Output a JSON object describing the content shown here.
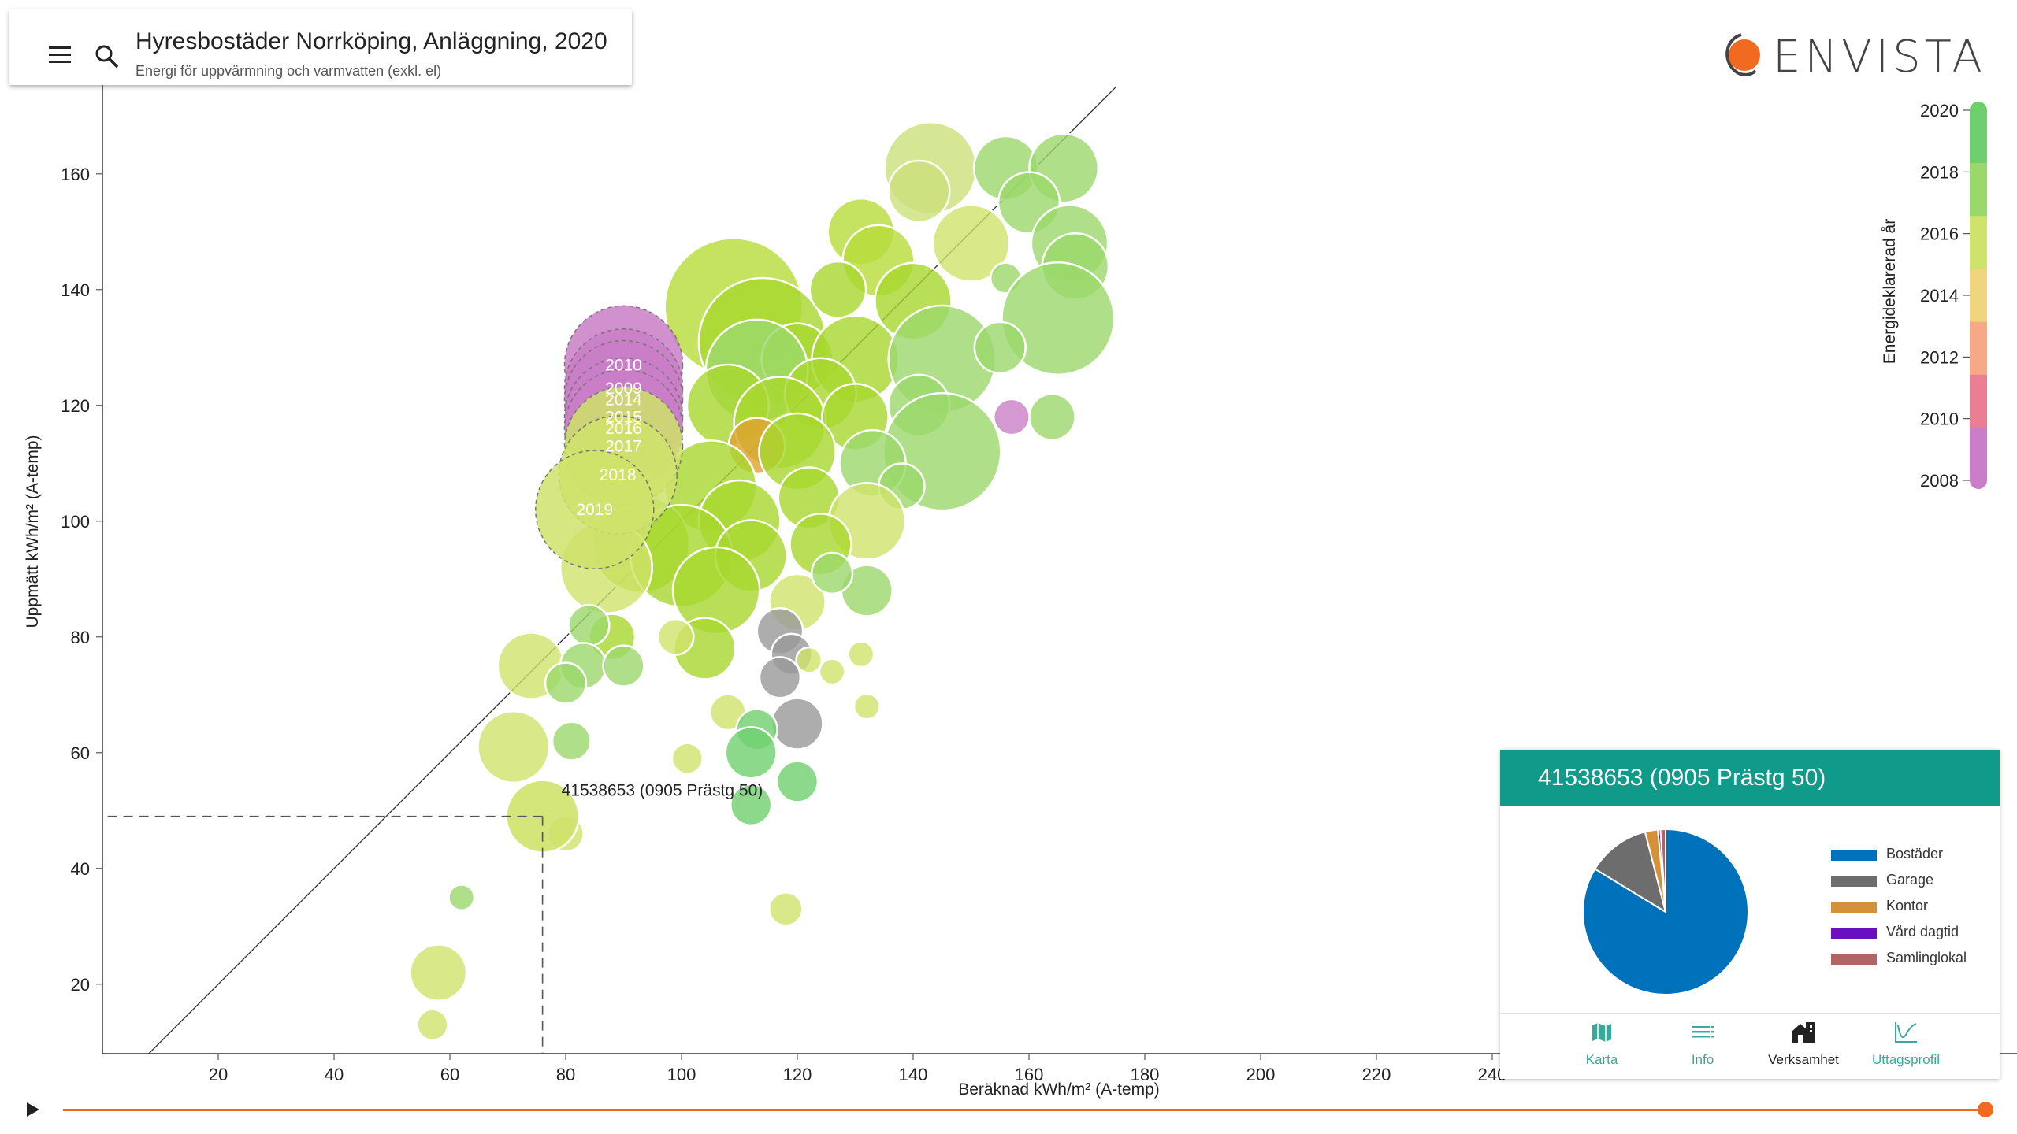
{
  "header": {
    "title": "Hyresbostäder Norrköping, Anläggning, 2020",
    "subtitle": "Energi för uppvärmning och varmvatten (exkl. el)"
  },
  "logo": {
    "text": "ENVISTA",
    "mark_color": "#f26a21"
  },
  "chart_data": {
    "type": "scatter",
    "xlabel": "Beräknad kWh/m² (A-temp)",
    "ylabel": "Uppmätt kWh/m² (A-temp)",
    "xlim": [
      0,
      250
    ],
    "ylim": [
      8,
      175
    ],
    "xticks": [
      20,
      40,
      60,
      80,
      100,
      120,
      140,
      160,
      180,
      200,
      220,
      240
    ],
    "yticks": [
      20,
      40,
      60,
      80,
      100,
      120,
      140,
      160
    ],
    "reference_line": "y = x",
    "colorbar": {
      "title": "Energideklarerad år",
      "ticks": [
        2020,
        2018,
        2016,
        2014,
        2012,
        2010,
        2008
      ],
      "colors": [
        "#6fcf6f",
        "#9bd86b",
        "#cfe26a",
        "#eed57e",
        "#f5a987",
        "#ea7e93",
        "#c97ec7"
      ]
    },
    "highlight": {
      "label": "41538653 (0905 Prästg 50)",
      "x": 76,
      "y": 49,
      "trail": [
        {
          "year": "2010",
          "x": 90,
          "y": 127
        },
        {
          "year": "2009",
          "x": 90,
          "y": 123
        },
        {
          "year": "2014",
          "x": 90,
          "y": 121
        },
        {
          "year": "2015",
          "x": 90,
          "y": 118
        },
        {
          "year": "2016",
          "x": 90,
          "y": 116
        },
        {
          "year": "2017",
          "x": 90,
          "y": 113
        },
        {
          "year": "2018",
          "x": 89,
          "y": 108
        },
        {
          "year": "2019",
          "x": 85,
          "y": 102
        }
      ]
    },
    "points": [
      {
        "x": 143,
        "y": 161,
        "s": 36,
        "c": "#cbe07a"
      },
      {
        "x": 156,
        "y": 161,
        "s": 25,
        "c": "#9bd86b"
      },
      {
        "x": 166,
        "y": 161,
        "s": 27,
        "c": "#9bd86b"
      },
      {
        "x": 141,
        "y": 157,
        "s": 24,
        "c": "#cbe07a"
      },
      {
        "x": 160,
        "y": 155,
        "s": 24,
        "c": "#9bd86b"
      },
      {
        "x": 131,
        "y": 150,
        "s": 26,
        "c": "#b6dc3a"
      },
      {
        "x": 150,
        "y": 148,
        "s": 30,
        "c": "#cfe26a"
      },
      {
        "x": 167,
        "y": 148,
        "s": 30,
        "c": "#9bd86b"
      },
      {
        "x": 168,
        "y": 144,
        "s": 26,
        "c": "#9bd86b"
      },
      {
        "x": 156,
        "y": 142,
        "s": 12,
        "c": "#9bd86b"
      },
      {
        "x": 134,
        "y": 145,
        "s": 28,
        "c": "#b6dc3a"
      },
      {
        "x": 109,
        "y": 137,
        "s": 54,
        "c": "#b6dc3a"
      },
      {
        "x": 114,
        "y": 131,
        "s": 50,
        "c": "#a8d72e"
      },
      {
        "x": 140,
        "y": 138,
        "s": 30,
        "c": "#a8d72e"
      },
      {
        "x": 127,
        "y": 140,
        "s": 22,
        "c": "#a8d72e"
      },
      {
        "x": 165,
        "y": 135,
        "s": 44,
        "c": "#9bd86b"
      },
      {
        "x": 120,
        "y": 128,
        "s": 28,
        "c": "#a8d72e"
      },
      {
        "x": 130,
        "y": 128,
        "s": 34,
        "c": "#a8d72e"
      },
      {
        "x": 145,
        "y": 128,
        "s": 42,
        "c": "#9bd86b"
      },
      {
        "x": 155,
        "y": 130,
        "s": 20,
        "c": "#9bd86b"
      },
      {
        "x": 113,
        "y": 126,
        "s": 40,
        "c": "#9bd86b"
      },
      {
        "x": 124,
        "y": 122,
        "s": 28,
        "c": "#a8d72e"
      },
      {
        "x": 141,
        "y": 120,
        "s": 24,
        "c": "#9bd86b"
      },
      {
        "x": 108,
        "y": 120,
        "s": 32,
        "c": "#a8d72e"
      },
      {
        "x": 117,
        "y": 117,
        "s": 36,
        "c": "#a8d72e"
      },
      {
        "x": 130,
        "y": 118,
        "s": 26,
        "c": "#a8d72e"
      },
      {
        "x": 145,
        "y": 112,
        "s": 46,
        "c": "#9bd86b"
      },
      {
        "x": 164,
        "y": 118,
        "s": 18,
        "c": "#9bd86b"
      },
      {
        "x": 157,
        "y": 118,
        "s": 14,
        "c": "#c97ec7"
      },
      {
        "x": 113,
        "y": 113,
        "s": 22,
        "c": "#e0a030"
      },
      {
        "x": 120,
        "y": 112,
        "s": 30,
        "c": "#a8d72e"
      },
      {
        "x": 133,
        "y": 110,
        "s": 26,
        "c": "#9bd86b"
      },
      {
        "x": 105,
        "y": 106,
        "s": 36,
        "c": "#a8d72e"
      },
      {
        "x": 122,
        "y": 104,
        "s": 24,
        "c": "#a8d72e"
      },
      {
        "x": 138,
        "y": 106,
        "s": 18,
        "c": "#9bd86b"
      },
      {
        "x": 132,
        "y": 100,
        "s": 30,
        "c": "#cfe26a"
      },
      {
        "x": 110,
        "y": 100,
        "s": 32,
        "c": "#a8d72e"
      },
      {
        "x": 93,
        "y": 96,
        "s": 38,
        "c": "#a8d72e"
      },
      {
        "x": 100,
        "y": 94,
        "s": 40,
        "c": "#a8d72e"
      },
      {
        "x": 112,
        "y": 94,
        "s": 28,
        "c": "#a8d72e"
      },
      {
        "x": 124,
        "y": 96,
        "s": 24,
        "c": "#a8d72e"
      },
      {
        "x": 87,
        "y": 92,
        "s": 36,
        "c": "#cfe26a"
      },
      {
        "x": 106,
        "y": 88,
        "s": 34,
        "c": "#a8d72e"
      },
      {
        "x": 120,
        "y": 86,
        "s": 22,
        "c": "#cfe26a"
      },
      {
        "x": 132,
        "y": 88,
        "s": 20,
        "c": "#9bd86b"
      },
      {
        "x": 126,
        "y": 91,
        "s": 16,
        "c": "#9bd86b"
      },
      {
        "x": 117,
        "y": 81,
        "s": 18,
        "c": "#999999"
      },
      {
        "x": 119,
        "y": 77,
        "s": 16,
        "c": "#999999"
      },
      {
        "x": 117,
        "y": 73,
        "s": 16,
        "c": "#999999"
      },
      {
        "x": 120,
        "y": 65,
        "s": 20,
        "c": "#999999"
      },
      {
        "x": 122,
        "y": 76,
        "s": 10,
        "c": "#cfe26a"
      },
      {
        "x": 126,
        "y": 74,
        "s": 10,
        "c": "#cfe26a"
      },
      {
        "x": 131,
        "y": 77,
        "s": 10,
        "c": "#cfe26a"
      },
      {
        "x": 132,
        "y": 68,
        "s": 10,
        "c": "#cfe26a"
      },
      {
        "x": 104,
        "y": 78,
        "s": 24,
        "c": "#a8d72e"
      },
      {
        "x": 99,
        "y": 80,
        "s": 14,
        "c": "#cfe26a"
      },
      {
        "x": 88,
        "y": 80,
        "s": 18,
        "c": "#a8d72e"
      },
      {
        "x": 84,
        "y": 82,
        "s": 16,
        "c": "#9bd86b"
      },
      {
        "x": 74,
        "y": 75,
        "s": 26,
        "c": "#cfe26a"
      },
      {
        "x": 83,
        "y": 75,
        "s": 18,
        "c": "#9bd86b"
      },
      {
        "x": 80,
        "y": 72,
        "s": 16,
        "c": "#9bd86b"
      },
      {
        "x": 90,
        "y": 75,
        "s": 16,
        "c": "#9bd86b"
      },
      {
        "x": 108,
        "y": 67,
        "s": 14,
        "c": "#cfe26a"
      },
      {
        "x": 113,
        "y": 64,
        "s": 16,
        "c": "#6fcf6f"
      },
      {
        "x": 112,
        "y": 60,
        "s": 20,
        "c": "#6fcf6f"
      },
      {
        "x": 71,
        "y": 61,
        "s": 28,
        "c": "#cfe26a"
      },
      {
        "x": 81,
        "y": 62,
        "s": 15,
        "c": "#9bd86b"
      },
      {
        "x": 101,
        "y": 59,
        "s": 12,
        "c": "#cfe26a"
      },
      {
        "x": 120,
        "y": 55,
        "s": 16,
        "c": "#6fcf6f"
      },
      {
        "x": 112,
        "y": 51,
        "s": 16,
        "c": "#6fcf6f"
      },
      {
        "x": 80,
        "y": 46,
        "s": 14,
        "c": "#cfe26a"
      },
      {
        "x": 62,
        "y": 35,
        "s": 10,
        "c": "#9bd86b"
      },
      {
        "x": 118,
        "y": 33,
        "s": 13,
        "c": "#cfe26a"
      },
      {
        "x": 58,
        "y": 22,
        "s": 22,
        "c": "#cfe26a"
      },
      {
        "x": 57,
        "y": 13,
        "s": 12,
        "c": "#cfe26a"
      }
    ]
  },
  "info_card": {
    "title": "41538653 (0905 Prästg 50)",
    "pie": [
      {
        "label": "Bostäder",
        "value": 83.7,
        "color": "#0072bc"
      },
      {
        "label": "Garage",
        "value": 12.3,
        "color": "#6d6d6d"
      },
      {
        "label": "Kontor",
        "value": 2.5,
        "color": "#d4913a"
      },
      {
        "label": "Vård dagtid",
        "value": 0.5,
        "color": "#6a0fbf"
      },
      {
        "label": "Samlinglokal",
        "value": 1.0,
        "color": "#b06464"
      }
    ],
    "tabs": [
      {
        "label": "Karta",
        "color": "#3aa99c"
      },
      {
        "label": "Info",
        "color": "#3aa99c"
      },
      {
        "label": "Verksamhet",
        "color": "#222222"
      },
      {
        "label": "Uttagsprofil",
        "color": "#3aa99c"
      }
    ]
  },
  "timeline": {
    "progress": 1.0
  }
}
